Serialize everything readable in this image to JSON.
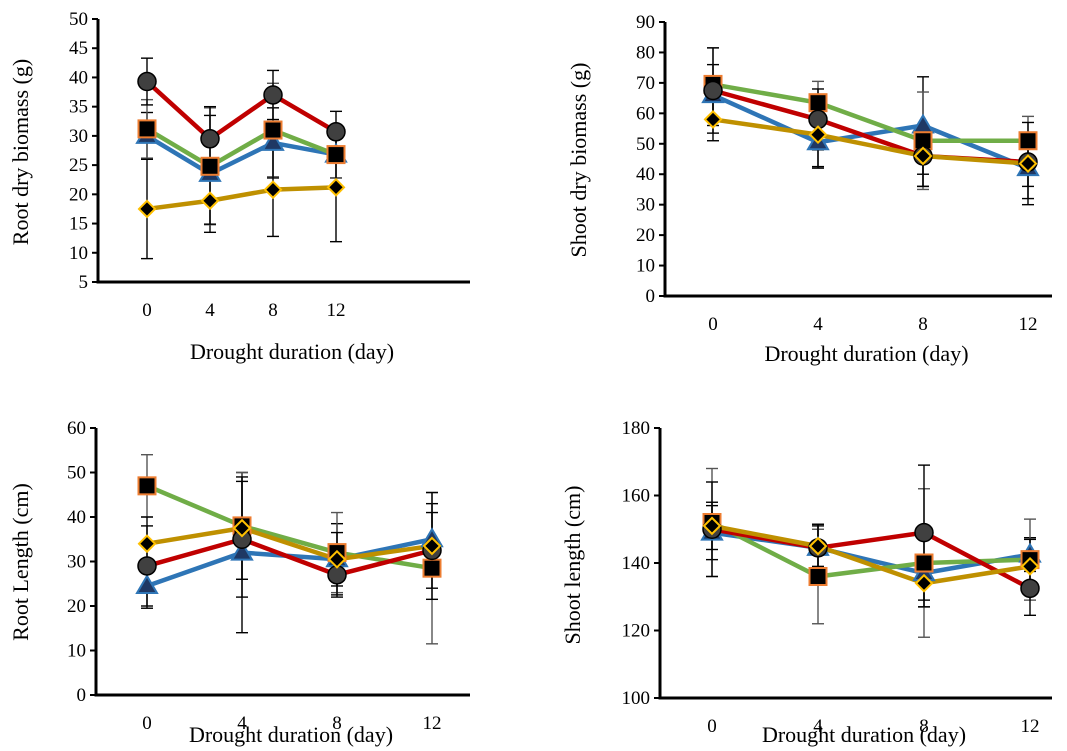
{
  "colors": {
    "blue_series": "#2E75B6",
    "green_series": "#70AD47",
    "red_series": "#C00000",
    "gold_series": "#BF9000",
    "triangle_fill": "#1F3864",
    "circle_fill": "#404040",
    "square_fill": "#000000",
    "square_edge": "#ED7D31",
    "diamond_fill": "#000000",
    "diamond_edge": "#FFC000",
    "axis": "#000000"
  },
  "chart_data": [
    {
      "type": "line",
      "title": "",
      "xlabel": "Drought duration (day)",
      "ylabel": "Root dry biomass (g)",
      "x": [
        0,
        4,
        8,
        12
      ],
      "ylim": [
        5,
        50
      ],
      "yticks": [
        5,
        10,
        15,
        20,
        25,
        30,
        35,
        40,
        45,
        50
      ],
      "grid": false,
      "legend": "none",
      "series": [
        {
          "color": "blue_series",
          "marker": "triangle",
          "values": [
            30.0,
            23.5,
            28.8,
            26.8
          ],
          "err": [
            4.0,
            10.0,
            6.0,
            4.0
          ]
        },
        {
          "color": "green_series",
          "marker": "square",
          "values": [
            31.2,
            24.8,
            31.0,
            26.8
          ],
          "err": [
            5.0,
            10.0,
            8.0,
            4.0
          ]
        },
        {
          "color": "red_series",
          "marker": "circle",
          "values": [
            39.3,
            29.5,
            37.0,
            30.7
          ],
          "err": [
            4.0,
            5.5,
            4.2,
            3.5
          ]
        },
        {
          "color": "gold_series",
          "marker": "diamond",
          "values": [
            17.5,
            18.9,
            20.8,
            21.2
          ],
          "err": [
            8.5,
            4.0,
            8.0,
            9.3
          ]
        }
      ]
    },
    {
      "type": "line",
      "title": "",
      "xlabel": "Drought duration (day)",
      "ylabel": "Shoot dry biomass (g)",
      "x": [
        0,
        4,
        8,
        12
      ],
      "ylim": [
        0,
        90
      ],
      "yticks": [
        0,
        10,
        20,
        30,
        40,
        50,
        60,
        70,
        80,
        90
      ],
      "grid": false,
      "legend": "none",
      "series": [
        {
          "color": "blue_series",
          "marker": "triangle",
          "values": [
            66.0,
            50.5,
            56.0,
            42.0
          ],
          "err": [
            10.0,
            8.0,
            16.0,
            10.0
          ]
        },
        {
          "color": "green_series",
          "marker": "square",
          "values": [
            69.5,
            63.5,
            51.0,
            51.0
          ],
          "err": [
            12.0,
            7.0,
            16.0,
            8.0
          ]
        },
        {
          "color": "red_series",
          "marker": "circle",
          "values": [
            67.5,
            58.0,
            46.0,
            44.0
          ],
          "err": [
            14.0,
            10.0,
            10.0,
            8.0
          ]
        },
        {
          "color": "gold_series",
          "marker": "diamond",
          "values": [
            58.0,
            53.0,
            46.0,
            43.5
          ],
          "err": [
            7.0,
            11.0,
            10.0,
            13.5
          ]
        }
      ]
    },
    {
      "type": "line",
      "title": "",
      "xlabel": "Drought duration (day)",
      "ylabel": "Root Length (cm)",
      "x": [
        0,
        4,
        8,
        12
      ],
      "ylim": [
        0,
        60
      ],
      "yticks": [
        0,
        10,
        20,
        30,
        40,
        50,
        60
      ],
      "grid": false,
      "legend": "none",
      "series": [
        {
          "color": "blue_series",
          "marker": "triangle",
          "values": [
            24.5,
            32.0,
            30.5,
            35.0
          ],
          "err": [
            5.0,
            18.0,
            8.0,
            8.0
          ]
        },
        {
          "color": "green_series",
          "marker": "square",
          "values": [
            47.0,
            38.0,
            32.0,
            28.5
          ],
          "err": [
            7.0,
            12.0,
            9.0,
            17.0
          ]
        },
        {
          "color": "red_series",
          "marker": "circle",
          "values": [
            29.0,
            35.0,
            27.0,
            32.5
          ],
          "err": [
            9.0,
            13.0,
            5.0,
            8.5
          ]
        },
        {
          "color": "gold_series",
          "marker": "diamond",
          "values": [
            34.0,
            37.5,
            30.5,
            33.5
          ],
          "err": [
            6.0,
            11.5,
            6.0,
            12.0
          ]
        }
      ]
    },
    {
      "type": "line",
      "title": "",
      "xlabel": "Drought duration (day)",
      "ylabel": "Shoot length (cm)",
      "x": [
        0,
        4,
        8,
        12
      ],
      "ylim": [
        100,
        180
      ],
      "yticks": [
        100,
        120,
        140,
        160,
        180
      ],
      "grid": false,
      "legend": "none",
      "series": [
        {
          "color": "blue_series",
          "marker": "triangle",
          "values": [
            149.0,
            144.5,
            137.0,
            142.5
          ],
          "err": [
            8.0,
            7.0,
            10.0,
            5.0
          ]
        },
        {
          "color": "green_series",
          "marker": "square",
          "values": [
            152.0,
            136.0,
            140.0,
            141.0
          ],
          "err": [
            16.0,
            14.0,
            22.0,
            12.0
          ]
        },
        {
          "color": "red_series",
          "marker": "circle",
          "values": [
            150.0,
            144.5,
            149.0,
            132.5
          ],
          "err": [
            14.0,
            7.0,
            20.0,
            8.0
          ]
        },
        {
          "color": "gold_series",
          "marker": "diamond",
          "values": [
            151.0,
            145.0,
            134.0,
            139.0
          ],
          "err": [
            7.0,
            6.0,
            7.0,
            8.0
          ]
        }
      ]
    }
  ]
}
